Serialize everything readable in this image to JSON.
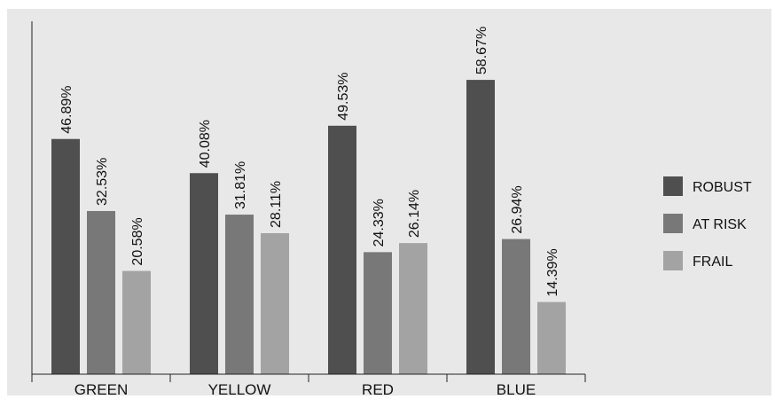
{
  "colors": {
    "background": "#e8e8e8",
    "axis": "#222222",
    "series": [
      "#4f4f4f",
      "#787878",
      "#a3a3a3"
    ]
  },
  "chart_data": {
    "type": "bar",
    "title": "",
    "xlabel": "",
    "ylabel": "",
    "ylim": [
      0,
      70
    ],
    "grid": false,
    "legend_position": "right",
    "categories": [
      "GREEN",
      "YELLOW",
      "RED",
      "BLUE"
    ],
    "series": [
      {
        "name": "ROBUST",
        "values": [
          46.89,
          40.08,
          49.53,
          58.67
        ],
        "labels": [
          "46.89%",
          "40.08%",
          "49.53%",
          "58.67%"
        ]
      },
      {
        "name": "AT RISK",
        "values": [
          32.53,
          31.81,
          24.33,
          26.94
        ],
        "labels": [
          "32.53%",
          "31.81%",
          "24.33%",
          "26.94%"
        ]
      },
      {
        "name": "FRAIL",
        "values": [
          20.58,
          28.11,
          26.14,
          14.39
        ],
        "labels": [
          "20.58%",
          "28.11%",
          "26.14%",
          "14.39%"
        ]
      }
    ]
  }
}
